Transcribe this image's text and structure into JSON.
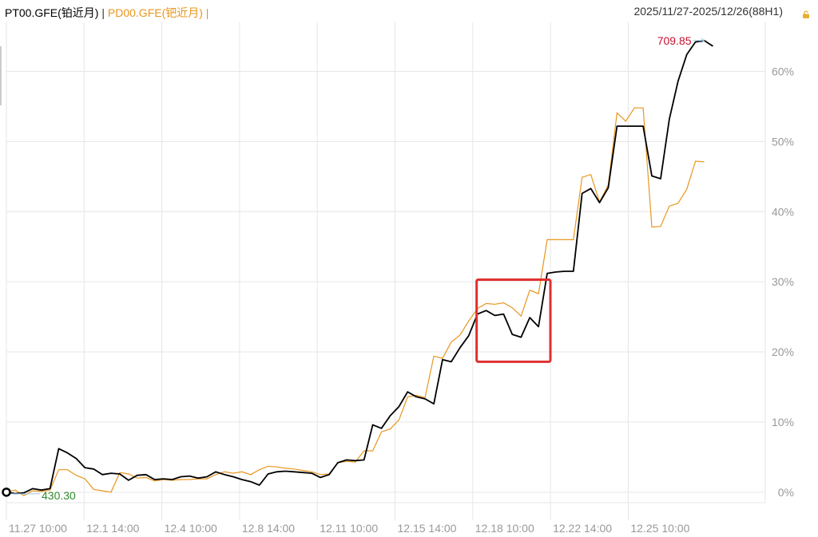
{
  "header": {
    "series1_label": "PT00.GFE(铂近月)",
    "separator": "|",
    "series2_label": "PD00.GFE(钯近月)",
    "date_range": "2025/11/27-2025/12/26(88H1)"
  },
  "colors": {
    "series1": "#000000",
    "series2": "#e8961e",
    "grid": "#e6e6e6",
    "axis_text": "#999999",
    "low_label": "#2e8b2e",
    "high_label": "#c8102e",
    "highlight_box": "#e03030",
    "lock_icon": "#e8b030"
  },
  "chart_data": {
    "type": "line",
    "x_labels": [
      "11.27 10:00",
      "12.1 14:00",
      "12.4 10:00",
      "12.8 14:00",
      "12.11 10:00",
      "12.15 14:00",
      "12.18 10:00",
      "12.22 14:00",
      "12.25 10:00"
    ],
    "y_axis_ticks": [
      "0%",
      "10%",
      "20%",
      "30%",
      "40%",
      "50%",
      "60%"
    ],
    "ylim": [
      -1.5,
      67
    ],
    "n_points": 88,
    "series": [
      {
        "name": "PT00.GFE(铂近月)",
        "values": [
          0,
          -0.2,
          -0.1,
          0.5,
          0.3,
          0.5,
          6.2,
          5.6,
          4.8,
          3.5,
          3.3,
          2.5,
          2.7,
          2.6,
          1.7,
          2.4,
          2.5,
          1.8,
          1.9,
          1.8,
          2.2,
          2.3,
          2.0,
          2.2,
          2.9,
          2.5,
          2.2,
          1.8,
          1.5,
          1.0,
          2.6,
          2.9,
          3.0,
          2.9,
          2.8,
          2.7,
          2.1,
          2.5,
          4.2,
          4.6,
          4.5,
          4.6,
          9.6,
          9.1,
          10.9,
          12.2,
          14.3,
          13.6,
          13.3,
          12.6,
          18.9,
          18.6,
          20.6,
          22.3,
          25.4,
          25.9,
          25.2,
          25.4,
          22.5,
          22.1,
          24.9,
          23.6,
          31.2,
          31.4,
          31.5,
          31.5,
          42.6,
          43.3,
          41.3,
          43.4,
          52.2,
          52.2,
          52.2,
          52.2,
          45.1,
          44.7,
          53.2,
          58.6,
          62.4,
          64.2,
          64.4,
          63.6,
          null,
          null,
          null,
          null,
          null,
          null
        ],
        "markers": {
          "low": {
            "index": 0,
            "label": "430.30"
          },
          "high": {
            "index": 80,
            "label": "709.85"
          }
        }
      },
      {
        "name": "PD00.GFE(钯近月)",
        "values": [
          0,
          0.3,
          -0.5,
          0.2,
          0.1,
          0.3,
          3.2,
          3.2,
          2.4,
          1.9,
          0.4,
          0.2,
          0.0,
          2.8,
          2.6,
          2.0,
          2.1,
          1.6,
          1.8,
          1.7,
          1.8,
          1.8,
          1.9,
          1.9,
          2.5,
          2.9,
          2.7,
          2.9,
          2.5,
          3.2,
          3.7,
          3.6,
          3.4,
          3.3,
          3.1,
          2.9,
          2.5,
          2.6,
          4.2,
          4.4,
          4.3,
          5.9,
          5.9,
          8.6,
          9.0,
          10.3,
          13.6,
          13.8,
          13.5,
          19.4,
          19.1,
          21.4,
          22.4,
          24.4,
          26.2,
          26.9,
          26.8,
          27.0,
          26.3,
          25.1,
          28.8,
          28.3,
          36.0,
          36.0,
          36.0,
          36.0,
          44.9,
          45.3,
          41.4,
          43.8,
          54.1,
          52.9,
          54.8,
          54.8,
          37.8,
          37.9,
          40.8,
          41.2,
          43.2,
          47.2,
          47.1,
          null,
          null,
          null,
          null,
          null,
          null,
          null
        ]
      }
    ],
    "highlight_box": {
      "x_range": [
        54,
        62
      ],
      "y_range": [
        18.6,
        30.3
      ]
    },
    "grid": true
  }
}
